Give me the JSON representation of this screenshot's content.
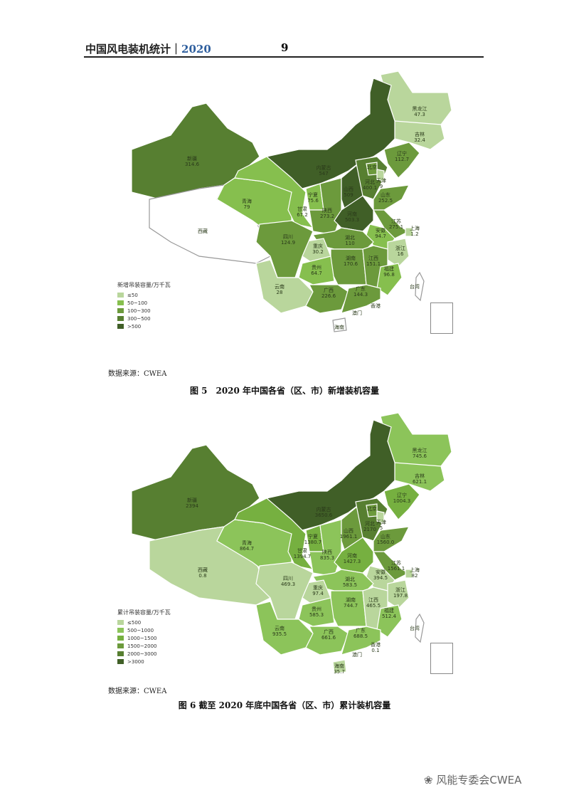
{
  "header": {
    "title": "中国风电装机统计｜",
    "year": "2020",
    "page_number": "9"
  },
  "colors": {
    "no_data": "#ffffff",
    "border": "#ffffff"
  },
  "figures": [
    {
      "caption": "图 5　2020 年中国各省（区、市）新增装机容量",
      "source": "数据来源：CWEA",
      "legend_title": "新增吊装容量/万千瓦",
      "legend": [
        {
          "label": "≤50",
          "max": 50,
          "color": "#b9d69c"
        },
        {
          "label": "50~100",
          "max": 100,
          "color": "#86bf4e"
        },
        {
          "label": "100~300",
          "max": 300,
          "color": "#6c9a3c"
        },
        {
          "label": "300~500",
          "max": 500,
          "color": "#577f31"
        },
        {
          "label": ">500",
          "max": 1000000000.0,
          "color": "#405f27"
        }
      ],
      "provinces": [
        {
          "name": "黑龙江",
          "value": "47.3"
        },
        {
          "name": "吉林",
          "value": "32.4"
        },
        {
          "name": "辽宁",
          "value": "112.7"
        },
        {
          "name": "内蒙古",
          "value": "547"
        },
        {
          "name": "新疆",
          "value": "314.6"
        },
        {
          "name": "西藏",
          "value": ""
        },
        {
          "name": "青海",
          "value": "79"
        },
        {
          "name": "甘肃",
          "value": "67.2"
        },
        {
          "name": "宁夏",
          "value": "75.6"
        },
        {
          "name": "陕西",
          "value": "273.2"
        },
        {
          "name": "山西",
          "value": "509"
        },
        {
          "name": "河北",
          "value": "400.1"
        },
        {
          "name": "北京",
          "value": ""
        },
        {
          "name": "天津",
          "value": "9"
        },
        {
          "name": "山东",
          "value": "252.5"
        },
        {
          "name": "河南",
          "value": "503.3"
        },
        {
          "name": "江苏",
          "value": "275.1"
        },
        {
          "name": "上海",
          "value": "1.2"
        },
        {
          "name": "安徽",
          "value": "94.7"
        },
        {
          "name": "浙江",
          "value": "16"
        },
        {
          "name": "湖北",
          "value": "110"
        },
        {
          "name": "重庆",
          "value": "30.2"
        },
        {
          "name": "四川",
          "value": "124.9"
        },
        {
          "name": "湖南",
          "value": "170.6"
        },
        {
          "name": "江西",
          "value": "151.1"
        },
        {
          "name": "福建",
          "value": "96.8"
        },
        {
          "name": "贵州",
          "value": "64.7"
        },
        {
          "name": "云南",
          "value": "28"
        },
        {
          "name": "广西",
          "value": "226.6"
        },
        {
          "name": "广东",
          "value": "144.3"
        },
        {
          "name": "香港",
          "value": ""
        },
        {
          "name": "澳门",
          "value": ""
        },
        {
          "name": "海南",
          "value": ""
        },
        {
          "name": "台湾",
          "value": ""
        }
      ]
    },
    {
      "caption": "图 6  截至 2020 年底中国各省（区、市）累计装机容量",
      "source": "数据来源：CWEA",
      "legend_title": "累计吊装容量/万千瓦",
      "legend": [
        {
          "label": "≤500",
          "max": 500,
          "color": "#b9d69c"
        },
        {
          "label": "500~1000",
          "max": 1000,
          "color": "#8cc45a"
        },
        {
          "label": "1000~1500",
          "max": 1500,
          "color": "#76b040"
        },
        {
          "label": "1500~2000",
          "max": 2000,
          "color": "#6c9a3c"
        },
        {
          "label": "2000~3000",
          "max": 3000,
          "color": "#577f31"
        },
        {
          "label": ">3000",
          "max": 1000000000.0,
          "color": "#405f27"
        }
      ],
      "provinces": [
        {
          "name": "黑龙江",
          "value": "745.6"
        },
        {
          "name": "吉林",
          "value": "621.1"
        },
        {
          "name": "辽宁",
          "value": "1004.3"
        },
        {
          "name": "内蒙古",
          "value": "3650.6"
        },
        {
          "name": "新疆",
          "value": "2394"
        },
        {
          "name": "西藏",
          "value": "0.8"
        },
        {
          "name": "青海",
          "value": "864.7"
        },
        {
          "name": "甘肃",
          "value": "1394.7"
        },
        {
          "name": "宁夏",
          "value": "1380.7"
        },
        {
          "name": "陕西",
          "value": "835.3"
        },
        {
          "name": "山西",
          "value": "1961.1"
        },
        {
          "name": "河北",
          "value": "2170"
        },
        {
          "name": "北京",
          "value": ""
        },
        {
          "name": "天津",
          "value": "5"
        },
        {
          "name": "山东",
          "value": "1560.0"
        },
        {
          "name": "河南",
          "value": "1427.3"
        },
        {
          "name": "江苏",
          "value": "1561.1"
        },
        {
          "name": "上海",
          "value": "82"
        },
        {
          "name": "安徽",
          "value": "394.5"
        },
        {
          "name": "浙江",
          "value": "197.8"
        },
        {
          "name": "湖北",
          "value": "583.5"
        },
        {
          "name": "重庆",
          "value": "97.4"
        },
        {
          "name": "四川",
          "value": "469.3"
        },
        {
          "name": "湖南",
          "value": "744.7"
        },
        {
          "name": "江西",
          "value": "465.5"
        },
        {
          "name": "福建",
          "value": "512.4"
        },
        {
          "name": "贵州",
          "value": "585.3"
        },
        {
          "name": "云南",
          "value": "935.5"
        },
        {
          "name": "广西",
          "value": "661.6"
        },
        {
          "name": "广东",
          "value": "688.5"
        },
        {
          "name": "香港",
          "value": "0.1"
        },
        {
          "name": "澳门",
          "value": ""
        },
        {
          "name": "海南",
          "value": "35.7"
        },
        {
          "name": "台湾",
          "value": ""
        }
      ]
    }
  ],
  "watermark": "风能专委会CWEA"
}
